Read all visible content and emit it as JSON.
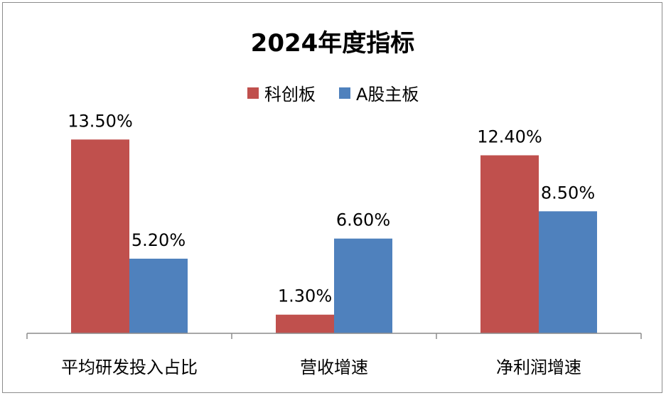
{
  "chart_data": {
    "type": "bar",
    "title": "2024年度指标",
    "categories": [
      "平均研发投入占比",
      "营收增速",
      "净利润增速"
    ],
    "series": [
      {
        "name": "科创板",
        "color": "#c0504d",
        "values": [
          13.5,
          1.3,
          12.4
        ],
        "labels": [
          "13.50%",
          "1.30%",
          "12.40%"
        ]
      },
      {
        "name": "A股主板",
        "color": "#4f81bd",
        "values": [
          5.2,
          6.6,
          8.5
        ],
        "labels": [
          "5.20%",
          "6.60%",
          "8.50%"
        ]
      }
    ],
    "ylim": [
      0,
      16
    ],
    "grid": false,
    "legend_position": "top"
  }
}
